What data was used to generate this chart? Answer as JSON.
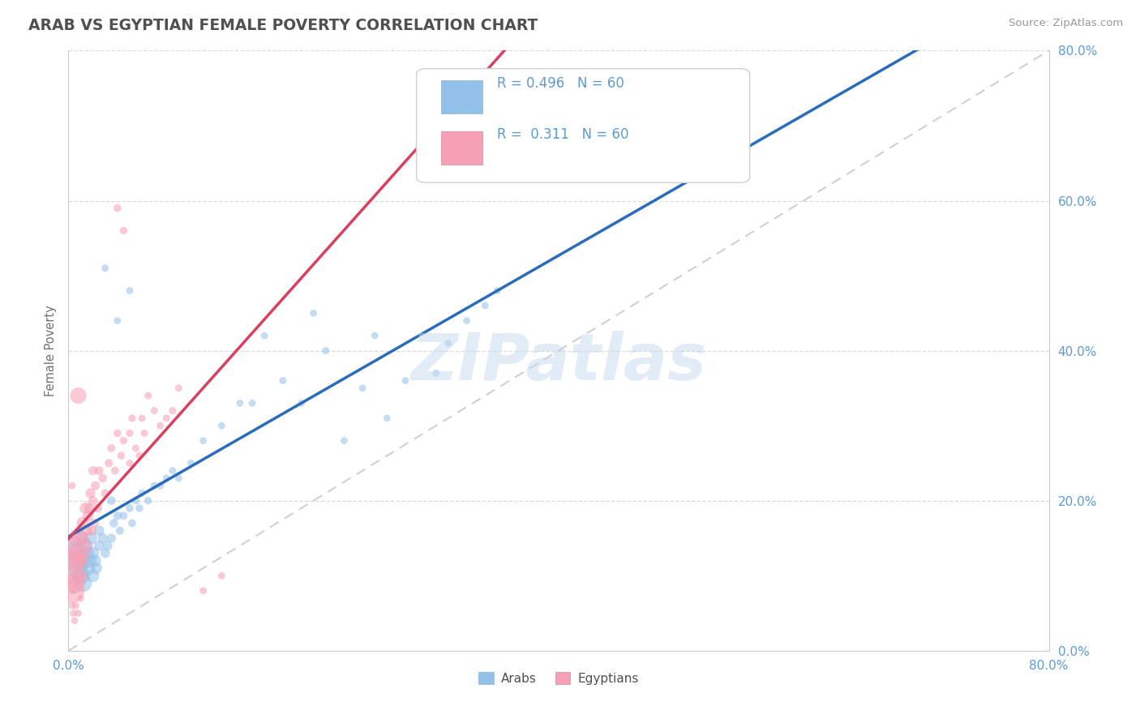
{
  "title": "ARAB VS EGYPTIAN FEMALE POVERTY CORRELATION CHART",
  "source": "Source: ZipAtlas.com",
  "xlabel_label": "Arabs",
  "ylabel_label": "Female Poverty",
  "x_label2": "Egyptians",
  "xlim": [
    0.0,
    0.8
  ],
  "ylim": [
    0.0,
    0.8
  ],
  "xtick_left_label": "0.0%",
  "xtick_right_label": "80.0%",
  "ytick_labels": [
    "0.0%",
    "20.0%",
    "40.0%",
    "60.0%",
    "80.0%"
  ],
  "yticks": [
    0.0,
    0.2,
    0.4,
    0.6,
    0.8
  ],
  "arab_color": "#92c0e8",
  "egyptian_color": "#f5a0b5",
  "arab_line_color": "#2b6cba",
  "egyptian_line_color": "#d94060",
  "dashed_line_color": "#c8c8c8",
  "R_arab": 0.496,
  "N_arab": 60,
  "R_egyptian": 0.311,
  "N_egyptian": 60,
  "watermark_text": "ZIPatlas",
  "background_color": "#ffffff",
  "grid_color": "#d8d8d8",
  "title_color": "#505050",
  "axis_tick_color": "#5b9bd5",
  "ylabel_color": "#808080",
  "arab_scatter": [
    [
      0.005,
      0.13
    ],
    [
      0.007,
      0.11
    ],
    [
      0.008,
      0.15
    ],
    [
      0.01,
      0.12
    ],
    [
      0.01,
      0.1
    ],
    [
      0.012,
      0.09
    ],
    [
      0.013,
      0.14
    ],
    [
      0.015,
      0.11
    ],
    [
      0.015,
      0.13
    ],
    [
      0.017,
      0.12
    ],
    [
      0.018,
      0.15
    ],
    [
      0.02,
      0.1
    ],
    [
      0.02,
      0.13
    ],
    [
      0.022,
      0.12
    ],
    [
      0.023,
      0.11
    ],
    [
      0.025,
      0.14
    ],
    [
      0.025,
      0.16
    ],
    [
      0.028,
      0.15
    ],
    [
      0.03,
      0.13
    ],
    [
      0.032,
      0.14
    ],
    [
      0.035,
      0.15
    ],
    [
      0.035,
      0.2
    ],
    [
      0.037,
      0.17
    ],
    [
      0.04,
      0.18
    ],
    [
      0.042,
      0.16
    ],
    [
      0.045,
      0.18
    ],
    [
      0.05,
      0.19
    ],
    [
      0.052,
      0.17
    ],
    [
      0.055,
      0.2
    ],
    [
      0.058,
      0.19
    ],
    [
      0.06,
      0.21
    ],
    [
      0.065,
      0.2
    ],
    [
      0.07,
      0.22
    ],
    [
      0.075,
      0.22
    ],
    [
      0.08,
      0.23
    ],
    [
      0.085,
      0.24
    ],
    [
      0.09,
      0.23
    ],
    [
      0.1,
      0.25
    ],
    [
      0.11,
      0.28
    ],
    [
      0.125,
      0.3
    ],
    [
      0.14,
      0.33
    ],
    [
      0.15,
      0.33
    ],
    [
      0.16,
      0.42
    ],
    [
      0.175,
      0.36
    ],
    [
      0.19,
      0.33
    ],
    [
      0.2,
      0.45
    ],
    [
      0.21,
      0.4
    ],
    [
      0.225,
      0.28
    ],
    [
      0.24,
      0.35
    ],
    [
      0.25,
      0.42
    ],
    [
      0.26,
      0.31
    ],
    [
      0.275,
      0.36
    ],
    [
      0.05,
      0.48
    ],
    [
      0.04,
      0.44
    ],
    [
      0.03,
      0.51
    ],
    [
      0.3,
      0.37
    ],
    [
      0.31,
      0.41
    ],
    [
      0.325,
      0.44
    ],
    [
      0.34,
      0.46
    ],
    [
      0.35,
      0.48
    ]
  ],
  "egyptian_scatter": [
    [
      0.003,
      0.08
    ],
    [
      0.003,
      0.1
    ],
    [
      0.004,
      0.12
    ],
    [
      0.005,
      0.09
    ],
    [
      0.005,
      0.14
    ],
    [
      0.006,
      0.13
    ],
    [
      0.007,
      0.12
    ],
    [
      0.008,
      0.34
    ],
    [
      0.009,
      0.15
    ],
    [
      0.01,
      0.12
    ],
    [
      0.01,
      0.1
    ],
    [
      0.011,
      0.15
    ],
    [
      0.012,
      0.17
    ],
    [
      0.013,
      0.13
    ],
    [
      0.014,
      0.19
    ],
    [
      0.015,
      0.16
    ],
    [
      0.015,
      0.14
    ],
    [
      0.016,
      0.18
    ],
    [
      0.017,
      0.19
    ],
    [
      0.018,
      0.21
    ],
    [
      0.019,
      0.16
    ],
    [
      0.02,
      0.2
    ],
    [
      0.02,
      0.24
    ],
    [
      0.021,
      0.17
    ],
    [
      0.022,
      0.22
    ],
    [
      0.024,
      0.19
    ],
    [
      0.025,
      0.24
    ],
    [
      0.028,
      0.23
    ],
    [
      0.03,
      0.21
    ],
    [
      0.033,
      0.25
    ],
    [
      0.035,
      0.27
    ],
    [
      0.038,
      0.24
    ],
    [
      0.04,
      0.29
    ],
    [
      0.04,
      0.59
    ],
    [
      0.043,
      0.26
    ],
    [
      0.045,
      0.28
    ],
    [
      0.045,
      0.56
    ],
    [
      0.05,
      0.29
    ],
    [
      0.05,
      0.25
    ],
    [
      0.052,
      0.31
    ],
    [
      0.055,
      0.27
    ],
    [
      0.058,
      0.26
    ],
    [
      0.06,
      0.31
    ],
    [
      0.062,
      0.29
    ],
    [
      0.065,
      0.34
    ],
    [
      0.07,
      0.32
    ],
    [
      0.075,
      0.3
    ],
    [
      0.08,
      0.31
    ],
    [
      0.085,
      0.32
    ],
    [
      0.09,
      0.35
    ],
    [
      0.003,
      0.06
    ],
    [
      0.004,
      0.08
    ],
    [
      0.004,
      0.05
    ],
    [
      0.005,
      0.04
    ],
    [
      0.006,
      0.06
    ],
    [
      0.008,
      0.05
    ],
    [
      0.01,
      0.07
    ],
    [
      0.11,
      0.08
    ],
    [
      0.125,
      0.1
    ],
    [
      0.003,
      0.22
    ]
  ],
  "arab_sizes": [
    400,
    350,
    300,
    280,
    260,
    240,
    220,
    200,
    180,
    160,
    140,
    130,
    120,
    110,
    100,
    90,
    85,
    80,
    75,
    70,
    65,
    60,
    58,
    56,
    54,
    52,
    50,
    50,
    48,
    48,
    46,
    46,
    44,
    44,
    42,
    42,
    42,
    40,
    40,
    40,
    40,
    40,
    40,
    40,
    40,
    40,
    40,
    40,
    40,
    40,
    40,
    40,
    40,
    40,
    40,
    40,
    40,
    40,
    40,
    40
  ],
  "egyptian_sizes": [
    500,
    450,
    380,
    340,
    300,
    260,
    230,
    210,
    190,
    170,
    150,
    140,
    130,
    120,
    110,
    100,
    95,
    90,
    85,
    80,
    75,
    70,
    68,
    66,
    64,
    62,
    60,
    58,
    56,
    54,
    52,
    50,
    48,
    48,
    46,
    46,
    46,
    44,
    44,
    44,
    42,
    42,
    42,
    42,
    42,
    42,
    42,
    42,
    42,
    42,
    40,
    40,
    40,
    40,
    40,
    40,
    40,
    40,
    40,
    40
  ]
}
